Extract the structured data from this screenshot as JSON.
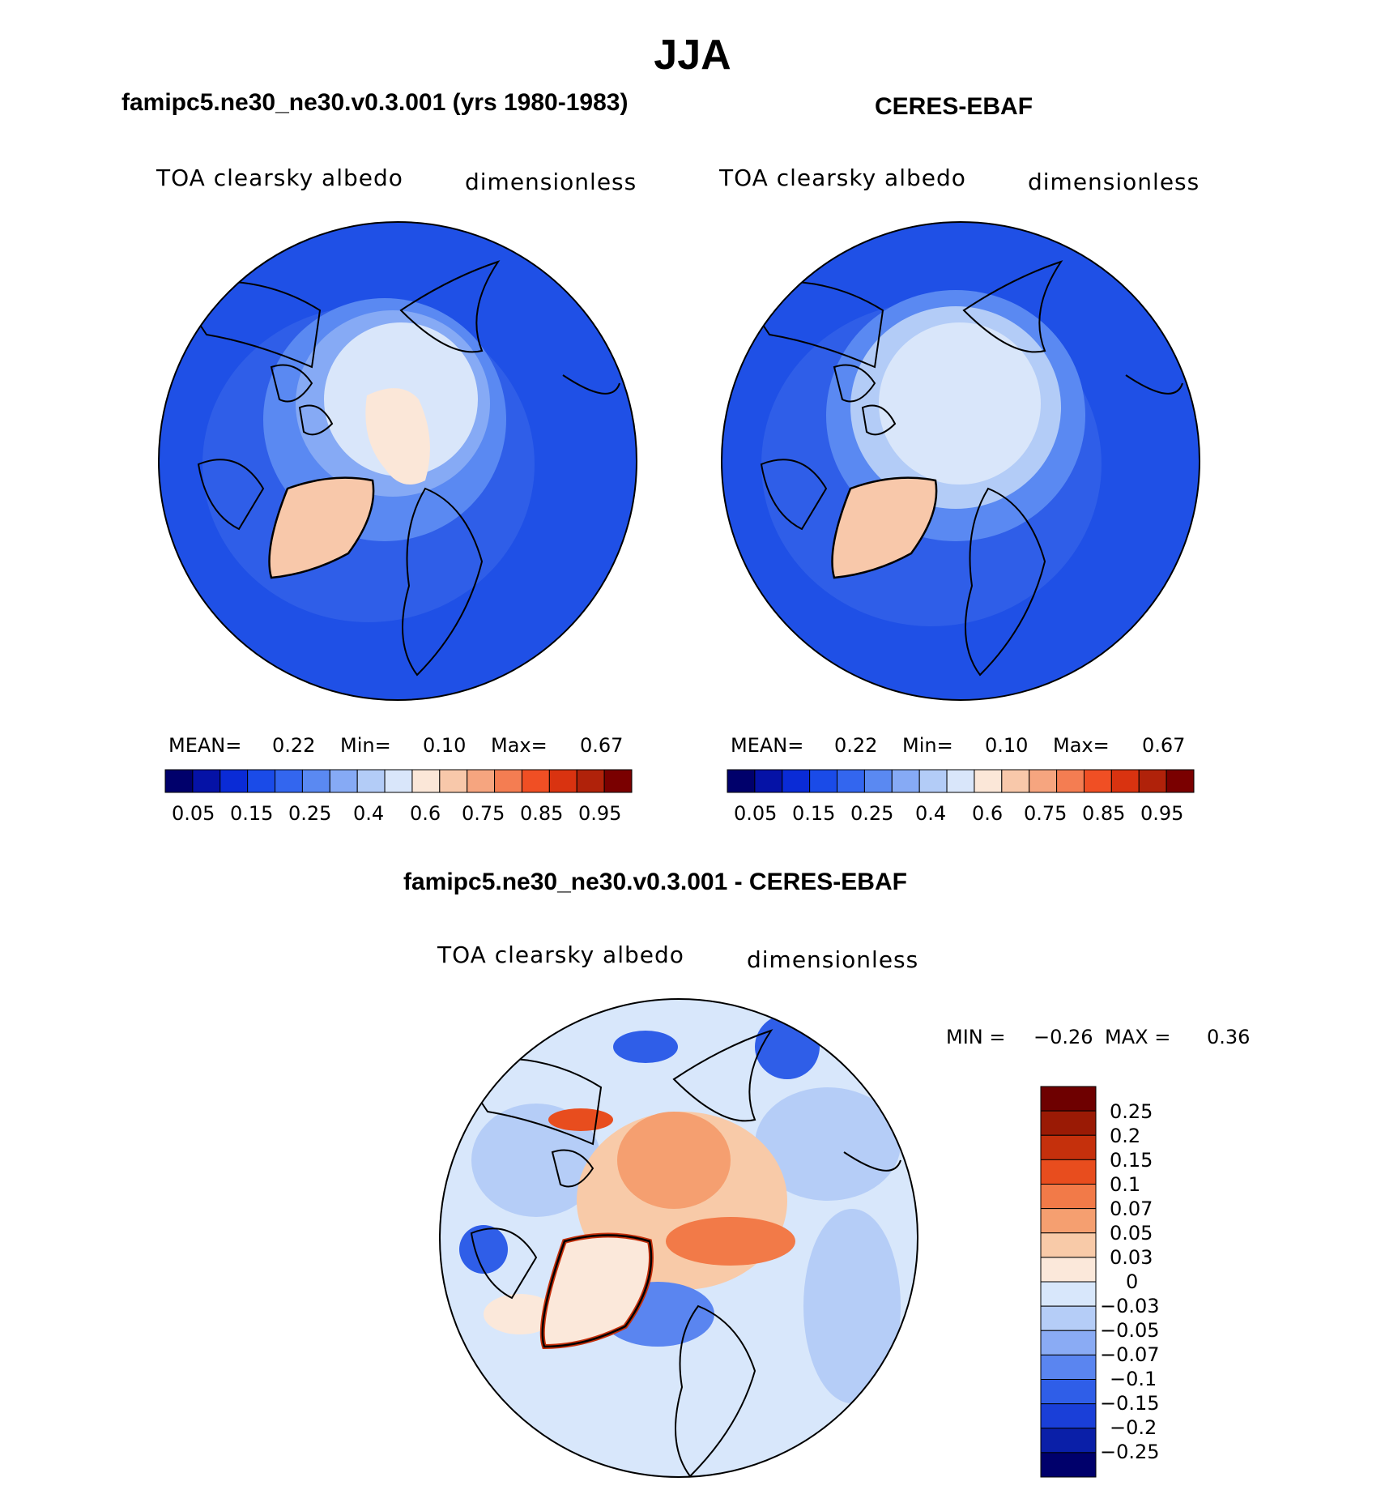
{
  "figure": {
    "season": "JJA",
    "diff_title": "famipc5.ne30_ne30.v0.3.001 - CERES-EBAF"
  },
  "panels": [
    {
      "title": "famipc5.ne30_ne30.v0.3.001 (yrs 1980-1983)",
      "variable": "TOA clearsky albedo",
      "units": "dimensionless",
      "stats": {
        "mean_label": "MEAN=",
        "mean": "0.22",
        "min_label": "Min=",
        "min": "0.10",
        "max_label": "Max=",
        "max": "0.67"
      }
    },
    {
      "title": "CERES-EBAF",
      "variable": "TOA clearsky albedo",
      "units": "dimensionless",
      "stats": {
        "mean_label": "MEAN=",
        "mean": "0.22",
        "min_label": "Min=",
        "min": "0.10",
        "max_label": "Max=",
        "max": "0.67"
      }
    },
    {
      "title": "",
      "variable": "TOA clearsky albedo",
      "units": "dimensionless",
      "stats": {
        "min_label": "MIN =",
        "min": "−0.26",
        "max_label": "MAX =",
        "max": "0.36"
      }
    }
  ],
  "colorbar_abs": {
    "colors": [
      "#00006b",
      "#0512a6",
      "#0a2bd6",
      "#1a4be8",
      "#3366ef",
      "#5a89f2",
      "#86aaf5",
      "#b3ccf7",
      "#d9e6fa",
      "#fbe7d8",
      "#f8c8aa",
      "#f6a57f",
      "#f47d52",
      "#f04f24",
      "#d93310",
      "#b0220a",
      "#7a0000"
    ],
    "tick_labels": [
      "0.05",
      "0.15",
      "0.25",
      "0.4",
      "0.6",
      "0.75",
      "0.85",
      "0.95"
    ]
  },
  "colorbar_diff": {
    "colors": [
      "#00006b",
      "#0a1fa8",
      "#1a3fd8",
      "#2f5ee8",
      "#5a85f0",
      "#8aabf4",
      "#b5cdf7",
      "#d8e7fb",
      "#fbe8da",
      "#f8caa8",
      "#f59f70",
      "#f27a48",
      "#e84d1e",
      "#c5300c",
      "#9a1a05",
      "#6e0000"
    ],
    "tick_labels": [
      "0.25",
      "0.2",
      "0.15",
      "0.1",
      "0.07",
      "0.05",
      "0.03",
      "0",
      "−0.03",
      "−0.05",
      "−0.07",
      "−0.1",
      "−0.15",
      "−0.2",
      "−0.25"
    ]
  }
}
